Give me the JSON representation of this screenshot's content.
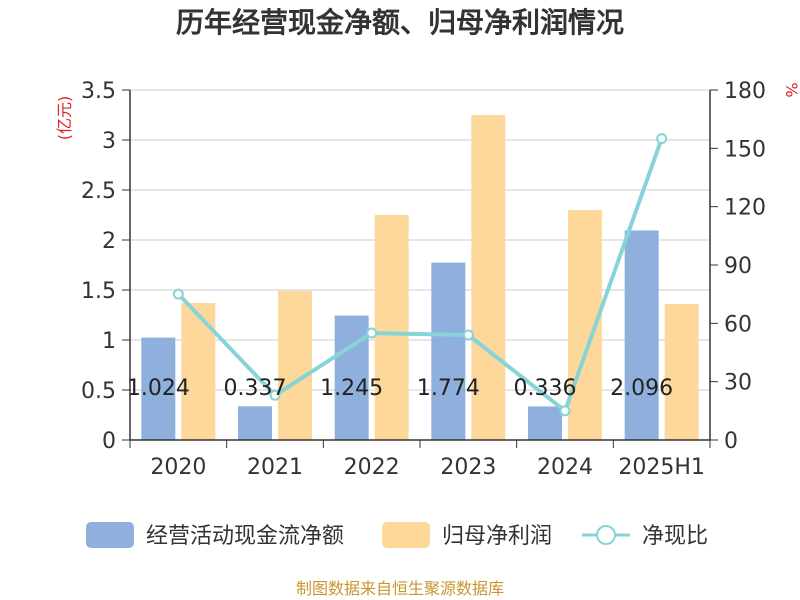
{
  "chart_data": {
    "type": "bar",
    "title": "历年经营现金净额、归母净利润情况",
    "categories": [
      "2020",
      "2021",
      "2022",
      "2023",
      "2024",
      "2025H1"
    ],
    "series": [
      {
        "name": "经营活动现金流净额",
        "kind": "bar",
        "axis": "left",
        "color": "#8fb0dc",
        "values": [
          1.024,
          0.337,
          1.245,
          1.774,
          0.336,
          2.096
        ],
        "labels": [
          "1.024",
          "0.337",
          "1.245",
          "1.774",
          "0.336",
          "2.096"
        ]
      },
      {
        "name": "归母净利润",
        "kind": "bar",
        "axis": "left",
        "color": "#fdd89a",
        "values": [
          1.37,
          1.49,
          2.25,
          3.25,
          2.3,
          1.36
        ]
      },
      {
        "name": "净现比",
        "kind": "line",
        "axis": "right",
        "color": "#86d3d8",
        "values": [
          75,
          23,
          55,
          54,
          15,
          155
        ]
      }
    ],
    "yleft": {
      "unit": "(亿元)",
      "lim": [
        0,
        3.5
      ],
      "ticks": [
        "0",
        "0.5",
        "1",
        "1.5",
        "2",
        "2.5",
        "3",
        "3.5"
      ]
    },
    "yright": {
      "unit": "%",
      "lim": [
        0,
        180
      ],
      "ticks": [
        "0",
        "30",
        "60",
        "90",
        "120",
        "150",
        "180"
      ]
    },
    "grid": true,
    "legend_position": "bottom"
  },
  "source": "制图数据来自恒生聚源数据库"
}
